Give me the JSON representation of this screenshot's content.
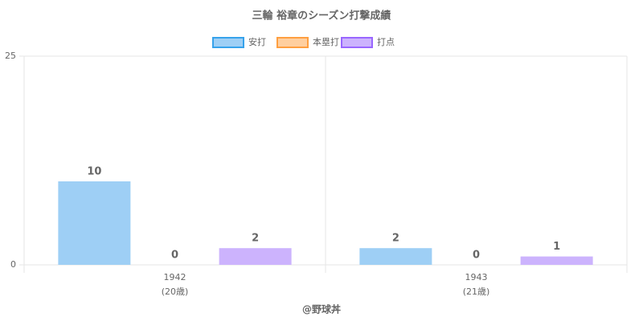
{
  "chart_data": {
    "type": "bar",
    "title": "三輪 裕章のシーズン打撃成績",
    "categories": [
      [
        "1942",
        "(20歳)"
      ],
      [
        "1943",
        "(21歳)"
      ]
    ],
    "series": [
      {
        "name": "安打",
        "color": "#9ecff5",
        "border": "#36a2eb",
        "values": [
          10,
          2
        ]
      },
      {
        "name": "本塁打",
        "color": "#ffcf9f",
        "border": "#ff9f40",
        "values": [
          0,
          0
        ]
      },
      {
        "name": "打点",
        "color": "#ccb3fd",
        "border": "#9966ff",
        "values": [
          2,
          1
        ]
      }
    ],
    "ylim": [
      0,
      25
    ],
    "yticks": [
      0,
      25
    ],
    "grid": true,
    "legend": "top",
    "footer": "@野球丼"
  }
}
